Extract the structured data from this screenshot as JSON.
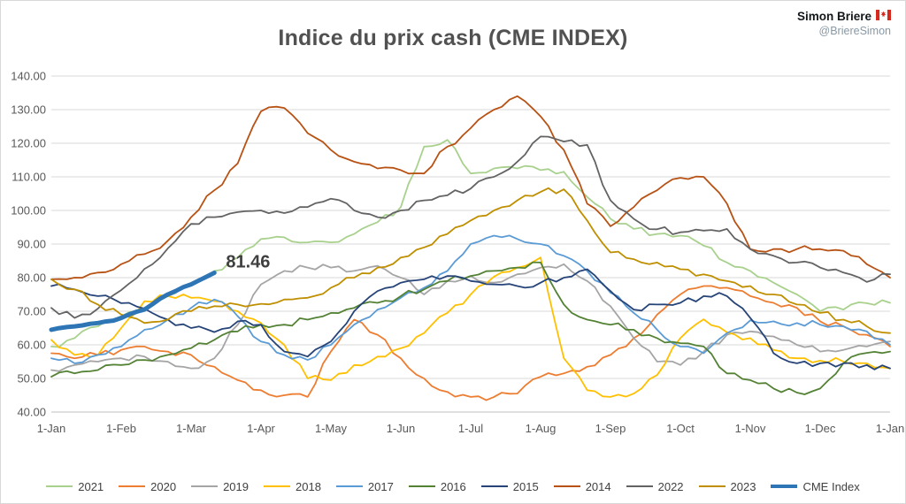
{
  "header": {
    "author": "Simon Briere",
    "handle": "@BriereSimon",
    "flag_colors": {
      "red": "#d52b1e",
      "white": "#ffffff"
    }
  },
  "title": "Indice du prix cash (CME INDEX)",
  "chart_data": {
    "type": "line",
    "title": "Indice du prix cash (CME INDEX)",
    "xlabel": "",
    "ylabel": "",
    "ylim": [
      40,
      140
    ],
    "grid": "horizontal",
    "legend_position": "bottom",
    "y_ticks": [
      {
        "value": 140,
        "label": "140.00"
      },
      {
        "value": 130,
        "label": "130.00"
      },
      {
        "value": 120,
        "label": "120.00"
      },
      {
        "value": 110,
        "label": "110.00"
      },
      {
        "value": 100,
        "label": "100.00"
      },
      {
        "value": 90,
        "label": "90.00"
      },
      {
        "value": 80,
        "label": "80.00"
      },
      {
        "value": 70,
        "label": "70.00"
      },
      {
        "value": 60,
        "label": "60.00"
      },
      {
        "value": 50,
        "label": "50.00"
      },
      {
        "value": 40,
        "label": "40.00"
      }
    ],
    "x_tick_labels": [
      "1-Jan",
      "1-Feb",
      "1-Mar",
      "1-Apr",
      "1-May",
      "1-Jun",
      "1-Jul",
      "1-Aug",
      "1-Sep",
      "1-Oct",
      "1-Nov",
      "1-Dec",
      "1-Jan"
    ],
    "points_per_series": 37,
    "annotation": {
      "text": "81.46",
      "series": "CME Index"
    },
    "series": [
      {
        "name": "2021",
        "color": "#a9d18e",
        "width": 1.8,
        "values": [
          59.5,
          62,
          65.5,
          68.5,
          71,
          74.5,
          78,
          82,
          86,
          91.5,
          92,
          90.5,
          90.5,
          93,
          96.5,
          101,
          119,
          121,
          111,
          112.5,
          112.5,
          112,
          111.5,
          104,
          97.5,
          94.5,
          93,
          92.5,
          89.5,
          84.5,
          82,
          78.5,
          75,
          70,
          70.5,
          72.4,
          72.5
        ]
      },
      {
        "name": "2020",
        "color": "#ed7d31",
        "width": 1.8,
        "values": [
          57.5,
          56,
          57,
          58.5,
          59.5,
          58,
          57,
          53.5,
          49.5,
          46.5,
          45,
          44.5,
          58,
          67.5,
          63,
          56,
          50,
          46,
          44.5,
          44.5,
          45.5,
          50.5,
          51.5,
          53.5,
          57,
          62,
          69,
          75,
          77.5,
          77,
          74.5,
          72.5,
          71,
          67,
          65.5,
          63,
          59.5
        ]
      },
      {
        "name": "2019",
        "color": "#a5a5a5",
        "width": 1.8,
        "values": [
          52.5,
          54,
          55,
          56,
          56.5,
          55,
          53,
          56,
          66,
          78,
          82,
          83,
          83,
          82,
          83.5,
          80,
          75,
          79,
          80.5,
          78.5,
          81,
          83,
          84,
          79,
          71.5,
          62,
          55,
          54,
          58,
          63,
          64,
          62.5,
          60,
          58,
          58.5,
          59.5,
          61
        ]
      },
      {
        "name": "2018",
        "color": "#ffc000",
        "width": 1.8,
        "values": [
          61.5,
          57,
          57,
          65,
          73,
          74.5,
          74,
          73,
          70,
          66.5,
          60,
          50,
          49.5,
          54,
          56.5,
          59,
          63.5,
          69.5,
          75,
          80.3,
          83,
          86,
          56,
          46.5,
          44.5,
          45.5,
          51,
          62,
          67.6,
          63.7,
          62,
          58.5,
          56,
          55.3,
          55,
          54.5,
          53
        ]
      },
      {
        "name": "2017",
        "color": "#5b9bd5",
        "width": 1.8,
        "values": [
          56,
          54.5,
          57,
          59.5,
          64.5,
          67.5,
          71,
          73.5,
          68.5,
          61,
          57,
          55.5,
          60,
          66,
          70.5,
          74,
          77,
          82,
          90,
          92.5,
          91.5,
          90,
          86.5,
          82,
          75.5,
          69.5,
          64.5,
          59.5,
          57.5,
          63.5,
          67.3,
          67,
          66.5,
          66,
          65.5,
          64,
          60
        ]
      },
      {
        "name": "2016",
        "color": "#548235",
        "width": 1.8,
        "values": [
          50.5,
          51.5,
          52.5,
          54,
          55.5,
          57,
          59,
          61.5,
          64,
          66,
          66,
          67.5,
          69.5,
          71,
          72.5,
          74.5,
          76.5,
          79,
          80.5,
          82,
          83,
          84.5,
          72,
          67.5,
          66,
          64.5,
          62,
          60.5,
          59.5,
          51.5,
          49.5,
          47,
          45.8,
          47,
          54.5,
          57.6,
          58
        ]
      },
      {
        "name": "2015",
        "color": "#264478",
        "width": 1.8,
        "values": [
          77.5,
          76.5,
          74.5,
          72.4,
          70.8,
          67.5,
          65,
          63.8,
          67,
          66,
          58,
          56.5,
          61,
          70,
          76,
          78.5,
          79.5,
          80.5,
          79,
          78,
          77.5,
          78.5,
          80,
          82.5,
          76,
          70.5,
          72,
          72.5,
          74.5,
          74.5,
          68,
          57.5,
          54.5,
          54.5,
          54.5,
          54,
          53
        ]
      },
      {
        "name": "2014",
        "color": "#b85214",
        "width": 1.8,
        "values": [
          79.5,
          80,
          81.5,
          84,
          87,
          91,
          98,
          106,
          114,
          129.5,
          130.5,
          123,
          118,
          114.5,
          112.5,
          112,
          111,
          119,
          124.5,
          130,
          134,
          128,
          118,
          102,
          95.3,
          101,
          106,
          109.7,
          110,
          102,
          88.5,
          88.5,
          88.5,
          88.5,
          88,
          84,
          80
        ]
      },
      {
        "name": "2022",
        "color": "#636363",
        "width": 1.8,
        "values": [
          71,
          68,
          70.8,
          76.3,
          82.6,
          88.7,
          96,
          98,
          99.5,
          100,
          99.2,
          101,
          103.5,
          100,
          98,
          100,
          103,
          104.5,
          106.5,
          110,
          114.5,
          122,
          120.5,
          119.5,
          103,
          97.5,
          94.4,
          93.5,
          94,
          94.5,
          88.5,
          86.5,
          84.5,
          83,
          81.5,
          78.7,
          81
        ]
      },
      {
        "name": "2023",
        "color": "#bf8f00",
        "width": 1.8,
        "values": [
          79.5,
          76.5,
          72,
          69,
          66.5,
          67.5,
          70,
          71.5,
          72,
          72.2,
          73.5,
          74,
          77,
          80,
          83,
          86,
          89,
          93,
          97,
          100,
          103,
          105.5,
          106.3,
          97,
          87.5,
          85.5,
          84.5,
          82.5,
          81,
          79,
          77.5,
          75,
          72,
          69.5,
          67.5,
          65.5,
          63.5
        ]
      },
      {
        "name": "CME Index",
        "color": "#2e75b6",
        "width": 5,
        "values": [
          64.5,
          65.5,
          66.5,
          68,
          70.5,
          75,
          78,
          81.46,
          null,
          null,
          null,
          null,
          null,
          null,
          null,
          null,
          null,
          null,
          null,
          null,
          null,
          null,
          null,
          null,
          null,
          null,
          null,
          null,
          null,
          null,
          null,
          null,
          null,
          null,
          null,
          null,
          null
        ]
      }
    ]
  }
}
